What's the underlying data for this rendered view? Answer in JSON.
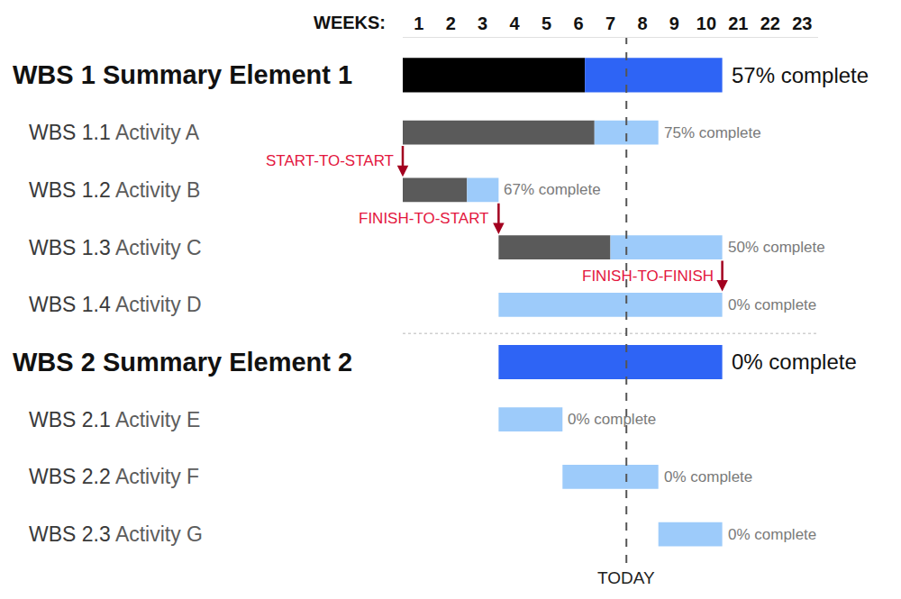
{
  "chart_data": {
    "type": "gantt",
    "x_label": "WEEKS:",
    "categories": [
      "1",
      "2",
      "3",
      "4",
      "5",
      "6",
      "7",
      "8",
      "9",
      "10",
      "21",
      "22",
      "23"
    ],
    "today": "8",
    "today_label": "TODAY",
    "groups": [
      {
        "id": "WBS 1",
        "name": "Summary Element 1",
        "start": "1",
        "end": "10",
        "value": 57,
        "value_label": "57% complete",
        "tasks": [
          {
            "id": "WBS 1.1",
            "name": "Activity A",
            "start": "1",
            "end": "8",
            "value": 75,
            "value_label": "75% complete"
          },
          {
            "id": "WBS 1.2",
            "name": "Activity B",
            "start": "1",
            "end": "3",
            "value": 67,
            "value_label": "67% complete"
          },
          {
            "id": "WBS 1.3",
            "name": "Activity C",
            "start": "4",
            "end": "10",
            "value": 50,
            "value_label": "50% complete"
          },
          {
            "id": "WBS 1.4",
            "name": "Activity D",
            "start": "4",
            "end": "10",
            "value": 0,
            "value_label": "0% complete"
          }
        ]
      },
      {
        "id": "WBS 2",
        "name": "Summary Element 2",
        "start": "4",
        "end": "10",
        "value": 0,
        "value_label": "0% complete",
        "tasks": [
          {
            "id": "WBS 2.1",
            "name": "Activity E",
            "start": "4",
            "end": "5",
            "value": 0,
            "value_label": "0% complete"
          },
          {
            "id": "WBS 2.2",
            "name": "Activity F",
            "start": "6",
            "end": "8",
            "value": 0,
            "value_label": "0% complete"
          },
          {
            "id": "WBS 2.3",
            "name": "Activity G",
            "start": "9",
            "end": "10",
            "value": 0,
            "value_label": "0% complete"
          }
        ]
      }
    ],
    "links": [
      {
        "from": "WBS 1.1",
        "to": "WBS 1.2",
        "from_end": "start",
        "to_end": "start",
        "label": "START-TO-START"
      },
      {
        "from": "WBS 1.2",
        "to": "WBS 1.3",
        "from_end": "finish",
        "to_end": "start",
        "label": "FINISH-TO-START"
      },
      {
        "from": "WBS 1.3",
        "to": "WBS 1.4",
        "from_end": "finish",
        "to_end": "finish",
        "label": "FINISH-TO-FINISH"
      }
    ]
  }
}
